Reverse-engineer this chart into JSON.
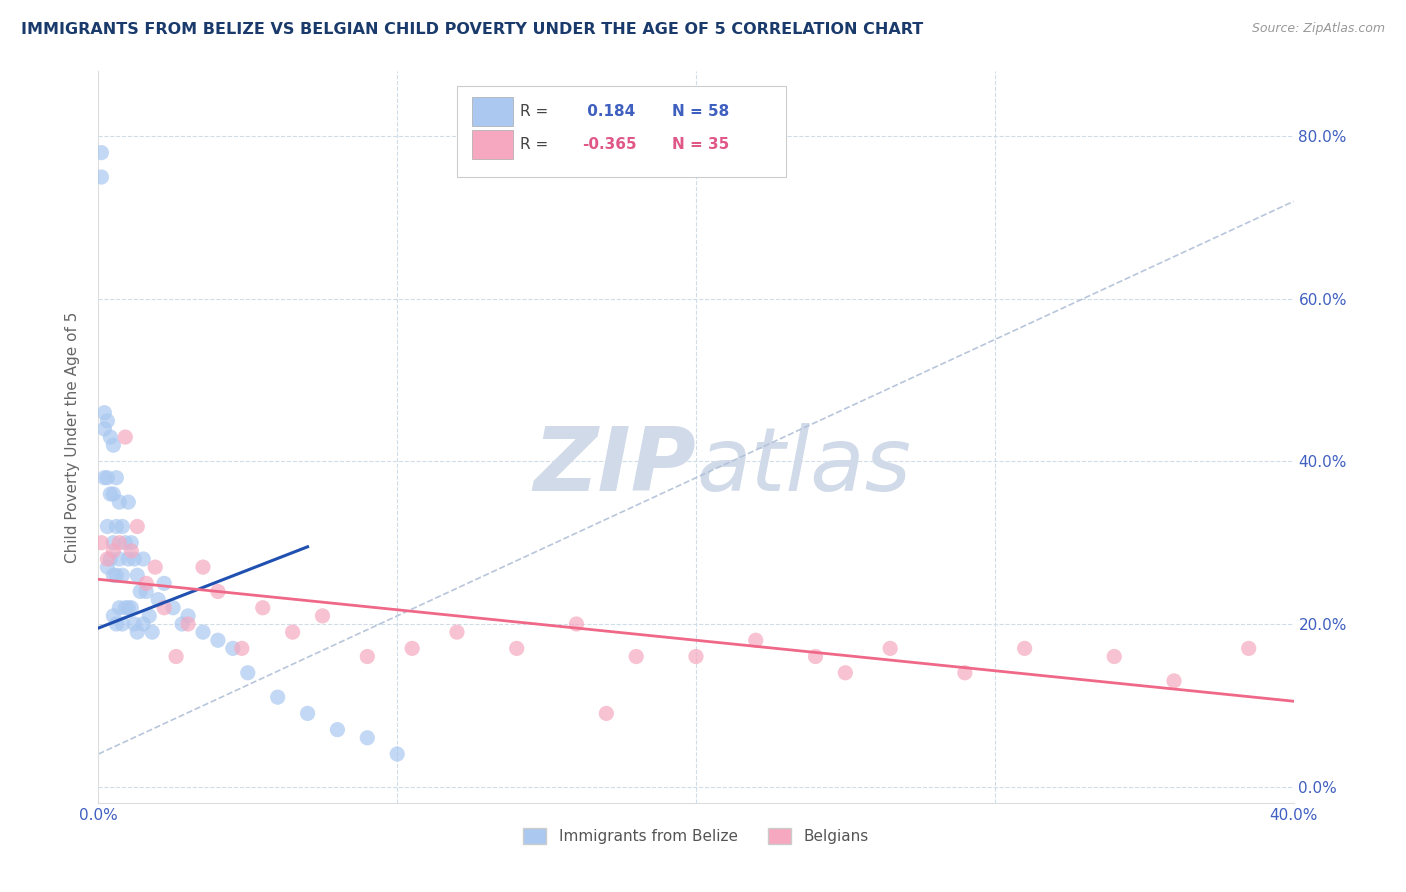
{
  "title": "IMMIGRANTS FROM BELIZE VS BELGIAN CHILD POVERTY UNDER THE AGE OF 5 CORRELATION CHART",
  "source": "Source: ZipAtlas.com",
  "ylabel": "Child Poverty Under the Age of 5",
  "xmin": 0.0,
  "xmax": 0.4,
  "ymin": -0.02,
  "ymax": 0.88,
  "x_ticks": [
    0.0,
    0.1,
    0.2,
    0.3,
    0.4
  ],
  "x_tick_labels": [
    "0.0%",
    "",
    "",
    "",
    "40.0%"
  ],
  "y_ticks": [
    0.0,
    0.2,
    0.4,
    0.6,
    0.8
  ],
  "y_tick_labels_right": [
    "0.0%",
    "20.0%",
    "40.0%",
    "60.0%",
    "80.0%"
  ],
  "legend_labels": [
    "Immigrants from Belize",
    "Belgians"
  ],
  "r_belize": 0.184,
  "n_belize": 58,
  "r_belgian": -0.365,
  "n_belgian": 35,
  "scatter_color_belize": "#aac8f0",
  "scatter_color_belgian": "#f5a8c0",
  "line_color_belize": "#2050b0",
  "line_color_belgian": "#f06888",
  "trendline_color_dashed": "#b0c0d8",
  "watermark_zip": "ZIP",
  "watermark_atlas": "atlas",
  "watermark_color": "#d0dae8",
  "title_color": "#1a3a6b",
  "axis_label_color": "#666666",
  "tick_color": "#4060c0",
  "grid_color": "#d0dce8",
  "belize_x": [
    0.001,
    0.001,
    0.002,
    0.002,
    0.002,
    0.003,
    0.003,
    0.003,
    0.003,
    0.004,
    0.004,
    0.004,
    0.005,
    0.005,
    0.005,
    0.005,
    0.005,
    0.006,
    0.006,
    0.006,
    0.006,
    0.007,
    0.007,
    0.007,
    0.008,
    0.008,
    0.008,
    0.009,
    0.009,
    0.01,
    0.01,
    0.01,
    0.011,
    0.011,
    0.012,
    0.012,
    0.013,
    0.013,
    0.014,
    0.015,
    0.015,
    0.016,
    0.017,
    0.018,
    0.02,
    0.022,
    0.025,
    0.028,
    0.03,
    0.035,
    0.04,
    0.045,
    0.05,
    0.06,
    0.07,
    0.08,
    0.09,
    0.1
  ],
  "belize_y": [
    0.78,
    0.75,
    0.46,
    0.44,
    0.38,
    0.45,
    0.38,
    0.32,
    0.27,
    0.43,
    0.36,
    0.28,
    0.42,
    0.36,
    0.3,
    0.26,
    0.21,
    0.38,
    0.32,
    0.26,
    0.2,
    0.35,
    0.28,
    0.22,
    0.32,
    0.26,
    0.2,
    0.3,
    0.22,
    0.35,
    0.28,
    0.22,
    0.3,
    0.22,
    0.28,
    0.2,
    0.26,
    0.19,
    0.24,
    0.28,
    0.2,
    0.24,
    0.21,
    0.19,
    0.23,
    0.25,
    0.22,
    0.2,
    0.21,
    0.19,
    0.18,
    0.17,
    0.14,
    0.11,
    0.09,
    0.07,
    0.06,
    0.04
  ],
  "belgian_x": [
    0.001,
    0.003,
    0.005,
    0.007,
    0.009,
    0.011,
    0.013,
    0.016,
    0.019,
    0.022,
    0.026,
    0.03,
    0.035,
    0.04,
    0.048,
    0.055,
    0.065,
    0.075,
    0.09,
    0.105,
    0.12,
    0.14,
    0.16,
    0.18,
    0.2,
    0.22,
    0.24,
    0.265,
    0.29,
    0.31,
    0.34,
    0.36,
    0.385,
    0.25,
    0.17
  ],
  "belgian_y": [
    0.3,
    0.28,
    0.29,
    0.3,
    0.43,
    0.29,
    0.32,
    0.25,
    0.27,
    0.22,
    0.16,
    0.2,
    0.27,
    0.24,
    0.17,
    0.22,
    0.19,
    0.21,
    0.16,
    0.17,
    0.19,
    0.17,
    0.2,
    0.16,
    0.16,
    0.18,
    0.16,
    0.17,
    0.14,
    0.17,
    0.16,
    0.13,
    0.17,
    0.14,
    0.09
  ],
  "belize_trendline_x": [
    0.0,
    0.07
  ],
  "belize_trendline_y_start": 0.195,
  "belize_trendline_y_end": 0.295,
  "belgian_trendline_y_start": 0.255,
  "belgian_trendline_y_end": 0.105,
  "diag_line_x": [
    0.0,
    0.4
  ],
  "diag_line_y": [
    0.04,
    0.72
  ]
}
